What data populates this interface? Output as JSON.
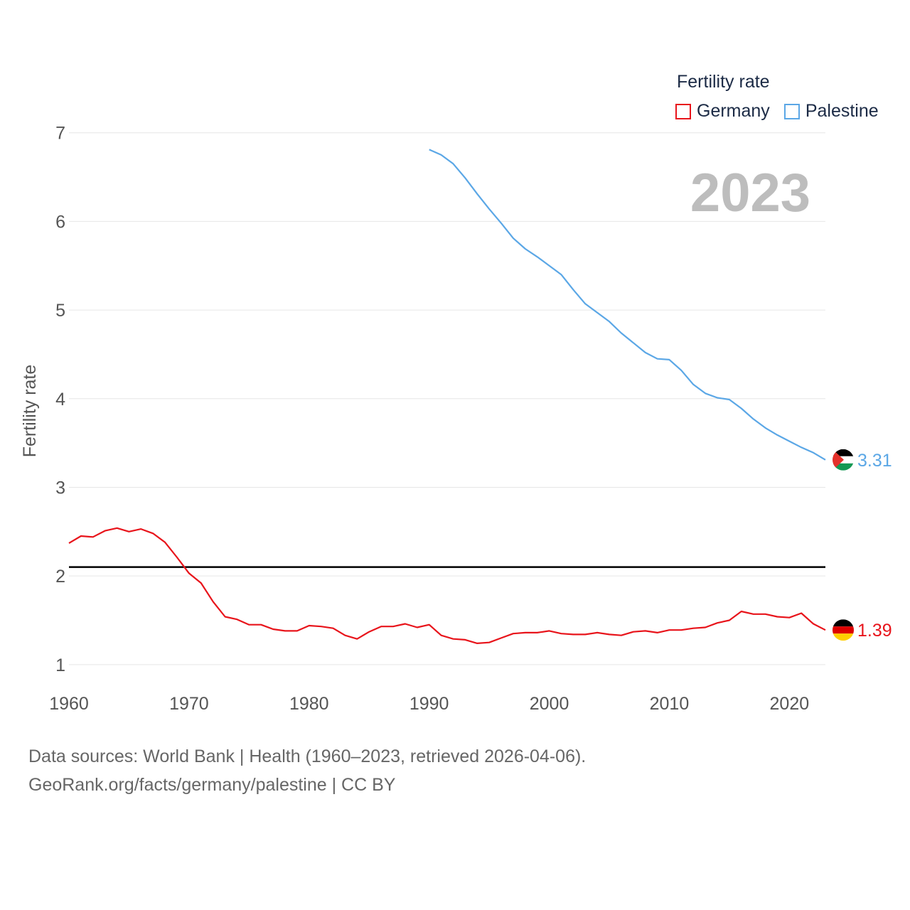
{
  "legend": {
    "title": "Fertility rate",
    "items": [
      {
        "label": "Germany",
        "color": "#e8141b"
      },
      {
        "label": "Palestine",
        "color": "#5ba7e6"
      }
    ]
  },
  "year_label": "2023",
  "source": {
    "line1": "Data sources: World Bank | Health (1960–2023, retrieved 2026-04-06).",
    "line2": "GeoRank.org/facts/germany/palestine | CC BY"
  },
  "chart_data": {
    "type": "line",
    "title": "Fertility rate",
    "xlabel": "",
    "ylabel": "Fertility rate",
    "xlim": [
      1960,
      2023
    ],
    "ylim": [
      0.75,
      7.15
    ],
    "x_ticks": [
      1960,
      1970,
      1980,
      1990,
      2000,
      2010,
      2020
    ],
    "y_ticks": [
      1,
      2,
      3,
      4,
      5,
      6,
      7
    ],
    "grid": true,
    "reference_line": {
      "y": 2.1,
      "color": "#000000"
    },
    "series": [
      {
        "name": "Germany",
        "color": "#e8141b",
        "end_label": "1.39",
        "x": [
          1960,
          1961,
          1962,
          1963,
          1964,
          1965,
          1966,
          1967,
          1968,
          1969,
          1970,
          1971,
          1972,
          1973,
          1974,
          1975,
          1976,
          1977,
          1978,
          1979,
          1980,
          1981,
          1982,
          1983,
          1984,
          1985,
          1986,
          1987,
          1988,
          1989,
          1990,
          1991,
          1992,
          1993,
          1994,
          1995,
          1996,
          1997,
          1998,
          1999,
          2000,
          2001,
          2002,
          2003,
          2004,
          2005,
          2006,
          2007,
          2008,
          2009,
          2010,
          2011,
          2012,
          2013,
          2014,
          2015,
          2016,
          2017,
          2018,
          2019,
          2020,
          2021,
          2022,
          2023
        ],
        "values": [
          2.37,
          2.45,
          2.44,
          2.51,
          2.54,
          2.5,
          2.53,
          2.48,
          2.38,
          2.21,
          2.03,
          1.92,
          1.71,
          1.54,
          1.51,
          1.45,
          1.45,
          1.4,
          1.38,
          1.38,
          1.44,
          1.43,
          1.41,
          1.33,
          1.29,
          1.37,
          1.43,
          1.43,
          1.46,
          1.42,
          1.45,
          1.33,
          1.29,
          1.28,
          1.24,
          1.25,
          1.3,
          1.35,
          1.36,
          1.36,
          1.38,
          1.35,
          1.34,
          1.34,
          1.36,
          1.34,
          1.33,
          1.37,
          1.38,
          1.36,
          1.39,
          1.39,
          1.41,
          1.42,
          1.47,
          1.5,
          1.6,
          1.57,
          1.57,
          1.54,
          1.53,
          1.58,
          1.46,
          1.39
        ]
      },
      {
        "name": "Palestine",
        "color": "#5ba7e6",
        "end_label": "3.31",
        "x": [
          1990,
          1991,
          1992,
          1993,
          1994,
          1995,
          1996,
          1997,
          1998,
          1999,
          2000,
          2001,
          2002,
          2003,
          2004,
          2005,
          2006,
          2007,
          2008,
          2009,
          2010,
          2011,
          2012,
          2013,
          2014,
          2015,
          2016,
          2017,
          2018,
          2019,
          2020,
          2021,
          2022,
          2023
        ],
        "values": [
          6.81,
          6.75,
          6.65,
          6.49,
          6.31,
          6.14,
          5.98,
          5.81,
          5.69,
          5.6,
          5.5,
          5.4,
          5.23,
          5.07,
          4.97,
          4.87,
          4.74,
          4.63,
          4.52,
          4.45,
          4.44,
          4.32,
          4.16,
          4.06,
          4.01,
          3.99,
          3.89,
          3.77,
          3.67,
          3.59,
          3.52,
          3.45,
          3.39,
          3.31
        ]
      }
    ]
  }
}
